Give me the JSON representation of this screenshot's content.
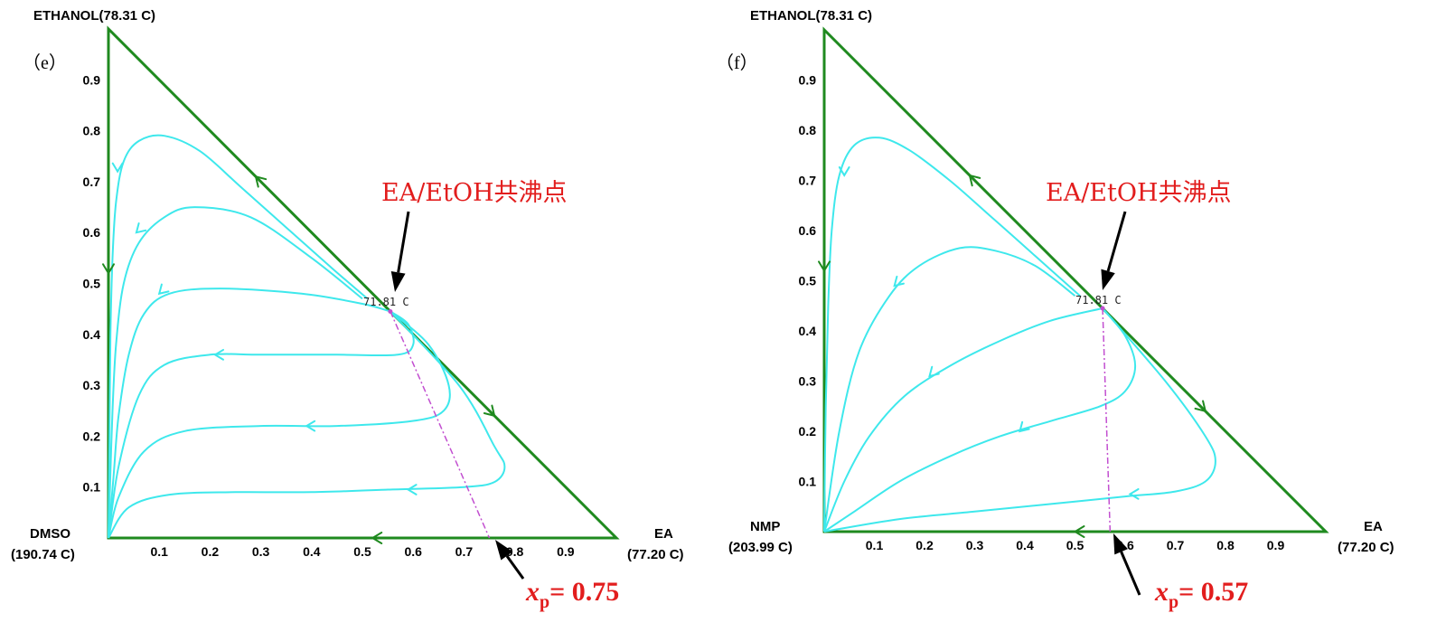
{
  "colors": {
    "triangle": "#1f8a1f",
    "residue_curve": "#3ee8ec",
    "boundary": "#c24fd0",
    "annotation": "#e21d1d"
  },
  "panels": [
    {
      "id": "e",
      "panel_label": "（e）",
      "top_vertex": "ETHANOL(78.31 C)",
      "left_vertex_name": "DMSO",
      "left_vertex_temp": "(190.74 C)",
      "right_vertex_name": "EA",
      "right_vertex_temp": "(77.20 C)",
      "azeotrope_temp": "71.81 C",
      "azeotrope_label": "EA/EtOH共沸点",
      "xp_symbol": "x",
      "xp_sub": "p",
      "xp_value": "= 0.75"
    },
    {
      "id": "f",
      "panel_label": "（f）",
      "top_vertex": "ETHANOL(78.31 C)",
      "left_vertex_name": "NMP",
      "left_vertex_temp": "(203.99 C)",
      "right_vertex_name": "EA",
      "right_vertex_temp": "(77.20 C)",
      "azeotrope_temp": "71.81 C",
      "azeotrope_label": "EA/EtOH共沸点",
      "xp_symbol": "x",
      "xp_sub": "p",
      "xp_value": "= 0.57"
    }
  ],
  "axis_ticks": [
    "0.1",
    "0.2",
    "0.3",
    "0.4",
    "0.5",
    "0.6",
    "0.7",
    "0.8",
    "0.9"
  ],
  "chart_data": [
    {
      "type": "ternary residue curve map",
      "components": [
        "ETHANOL",
        "DMSO",
        "EA"
      ],
      "boiling_points_C": {
        "ETHANOL": 78.31,
        "DMSO": 190.74,
        "EA": 77.2
      },
      "azeotrope": {
        "pair": "EA/EtOH",
        "temp_C": 71.81,
        "x_EA": 0.555,
        "y_EtOH": 0.445
      },
      "xp": 0.75,
      "boundary_line": [
        [
          0.555,
          0.445
        ],
        [
          0.75,
          0.0
        ]
      ],
      "residue_curves": [
        [
          [
            0.51,
            0.47
          ],
          [
            0.44,
            0.53
          ],
          [
            0.35,
            0.61
          ],
          [
            0.26,
            0.69
          ],
          [
            0.18,
            0.76
          ],
          [
            0.11,
            0.79
          ],
          [
            0.06,
            0.78
          ],
          [
            0.03,
            0.74
          ],
          [
            0.015,
            0.66
          ],
          [
            0.008,
            0.55
          ],
          [
            0.004,
            0.4
          ],
          [
            0.002,
            0.2
          ],
          [
            0.0,
            0.0
          ]
        ],
        [
          [
            0.5,
            0.47
          ],
          [
            0.4,
            0.55
          ],
          [
            0.28,
            0.63
          ],
          [
            0.17,
            0.65
          ],
          [
            0.11,
            0.63
          ],
          [
            0.06,
            0.58
          ],
          [
            0.03,
            0.5
          ],
          [
            0.015,
            0.38
          ],
          [
            0.008,
            0.25
          ],
          [
            0.003,
            0.1
          ],
          [
            0.0,
            0.0
          ]
        ],
        [
          [
            0.555,
            0.445
          ],
          [
            0.5,
            0.46
          ],
          [
            0.38,
            0.48
          ],
          [
            0.22,
            0.49
          ],
          [
            0.12,
            0.48
          ],
          [
            0.07,
            0.44
          ],
          [
            0.04,
            0.36
          ],
          [
            0.02,
            0.24
          ],
          [
            0.01,
            0.12
          ],
          [
            0.0,
            0.0
          ]
        ],
        [
          [
            0.555,
            0.445
          ],
          [
            0.59,
            0.42
          ],
          [
            0.6,
            0.38
          ],
          [
            0.57,
            0.36
          ],
          [
            0.45,
            0.36
          ],
          [
            0.3,
            0.36
          ],
          [
            0.2,
            0.36
          ],
          [
            0.11,
            0.34
          ],
          [
            0.06,
            0.28
          ],
          [
            0.02,
            0.14
          ],
          [
            0.0,
            0.0
          ]
        ],
        [
          [
            0.555,
            0.445
          ],
          [
            0.63,
            0.38
          ],
          [
            0.67,
            0.3
          ],
          [
            0.66,
            0.25
          ],
          [
            0.6,
            0.23
          ],
          [
            0.45,
            0.22
          ],
          [
            0.3,
            0.22
          ],
          [
            0.15,
            0.21
          ],
          [
            0.07,
            0.17
          ],
          [
            0.02,
            0.08
          ],
          [
            0.0,
            0.0
          ]
        ],
        [
          [
            0.555,
            0.445
          ],
          [
            0.69,
            0.3
          ],
          [
            0.76,
            0.18
          ],
          [
            0.78,
            0.14
          ],
          [
            0.76,
            0.11
          ],
          [
            0.7,
            0.1
          ],
          [
            0.55,
            0.095
          ],
          [
            0.4,
            0.09
          ],
          [
            0.25,
            0.09
          ],
          [
            0.12,
            0.085
          ],
          [
            0.04,
            0.06
          ],
          [
            0.0,
            0.0
          ]
        ]
      ],
      "curve_arrows": [
        {
          "curve": 0,
          "at": [
            0.018,
            0.72
          ],
          "dir": "down"
        },
        {
          "curve": 1,
          "at": [
            0.055,
            0.6
          ],
          "dir": "down-left"
        },
        {
          "curve": 2,
          "at": [
            0.1,
            0.48
          ],
          "dir": "down-left"
        },
        {
          "curve": 3,
          "at": [
            0.21,
            0.36
          ],
          "dir": "left"
        },
        {
          "curve": 4,
          "at": [
            0.39,
            0.22
          ],
          "dir": "left"
        },
        {
          "curve": 5,
          "at": [
            0.59,
            0.095
          ],
          "dir": "left"
        }
      ],
      "edge_arrows": [
        {
          "at": [
            0.29,
            0.71
          ],
          "dir": "up-left"
        },
        {
          "at": [
            0.76,
            0.24
          ],
          "dir": "down-right"
        },
        {
          "at": [
            0.52,
            0.0
          ],
          "dir": "left"
        },
        {
          "at": [
            0.0,
            0.52
          ],
          "dir": "down"
        }
      ]
    },
    {
      "type": "ternary residue curve map",
      "components": [
        "ETHANOL",
        "NMP",
        "EA"
      ],
      "boiling_points_C": {
        "ETHANOL": 78.31,
        "NMP": 203.99,
        "EA": 77.2
      },
      "azeotrope": {
        "pair": "EA/EtOH",
        "temp_C": 71.81,
        "x_EA": 0.555,
        "y_EtOH": 0.445
      },
      "xp": 0.57,
      "boundary_line": [
        [
          0.555,
          0.445
        ],
        [
          0.57,
          0.0
        ]
      ],
      "residue_curves": [
        [
          [
            0.51,
            0.47
          ],
          [
            0.42,
            0.55
          ],
          [
            0.33,
            0.63
          ],
          [
            0.25,
            0.7
          ],
          [
            0.17,
            0.76
          ],
          [
            0.11,
            0.785
          ],
          [
            0.06,
            0.77
          ],
          [
            0.03,
            0.71
          ],
          [
            0.015,
            0.6
          ],
          [
            0.008,
            0.45
          ],
          [
            0.003,
            0.25
          ],
          [
            0.0,
            0.0
          ]
        ],
        [
          [
            0.5,
            0.47
          ],
          [
            0.42,
            0.53
          ],
          [
            0.34,
            0.56
          ],
          [
            0.27,
            0.565
          ],
          [
            0.19,
            0.53
          ],
          [
            0.13,
            0.47
          ],
          [
            0.07,
            0.36
          ],
          [
            0.03,
            0.2
          ],
          [
            0.0,
            0.0
          ]
        ],
        [
          [
            0.555,
            0.445
          ],
          [
            0.45,
            0.42
          ],
          [
            0.35,
            0.38
          ],
          [
            0.25,
            0.33
          ],
          [
            0.16,
            0.27
          ],
          [
            0.09,
            0.19
          ],
          [
            0.04,
            0.1
          ],
          [
            0.0,
            0.0
          ]
        ],
        [
          [
            0.555,
            0.445
          ],
          [
            0.6,
            0.39
          ],
          [
            0.62,
            0.33
          ],
          [
            0.6,
            0.28
          ],
          [
            0.55,
            0.25
          ],
          [
            0.45,
            0.22
          ],
          [
            0.35,
            0.19
          ],
          [
            0.25,
            0.15
          ],
          [
            0.15,
            0.1
          ],
          [
            0.06,
            0.04
          ],
          [
            0.0,
            0.0
          ]
        ],
        [
          [
            0.555,
            0.445
          ],
          [
            0.68,
            0.3
          ],
          [
            0.76,
            0.19
          ],
          [
            0.78,
            0.14
          ],
          [
            0.76,
            0.1
          ],
          [
            0.7,
            0.08
          ],
          [
            0.6,
            0.07
          ],
          [
            0.45,
            0.055
          ],
          [
            0.3,
            0.04
          ],
          [
            0.15,
            0.025
          ],
          [
            0.0,
            0.0
          ]
        ]
      ],
      "curve_arrows": [
        {
          "curve": 0,
          "at": [
            0.04,
            0.71
          ],
          "dir": "down"
        },
        {
          "curve": 1,
          "at": [
            0.14,
            0.49
          ],
          "dir": "down-left"
        },
        {
          "curve": 2,
          "at": [
            0.21,
            0.31
          ],
          "dir": "down-left"
        },
        {
          "curve": 3,
          "at": [
            0.39,
            0.2
          ],
          "dir": "down-left"
        },
        {
          "curve": 4,
          "at": [
            0.61,
            0.075
          ],
          "dir": "left"
        }
      ],
      "edge_arrows": [
        {
          "at": [
            0.29,
            0.71
          ],
          "dir": "up-left"
        },
        {
          "at": [
            0.76,
            0.24
          ],
          "dir": "down-right"
        },
        {
          "at": [
            0.5,
            0.0
          ],
          "dir": "left"
        },
        {
          "at": [
            0.0,
            0.52
          ],
          "dir": "down"
        }
      ]
    }
  ]
}
